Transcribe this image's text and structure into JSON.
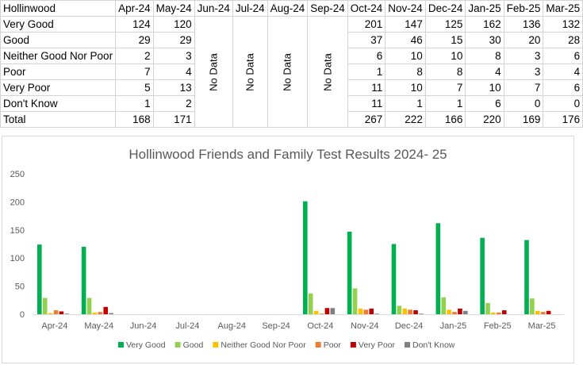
{
  "table": {
    "corner": "Hollinwood",
    "months": [
      "Apr-24",
      "May-24",
      "Jun-24",
      "Jul-24",
      "Aug-24",
      "Sep-24",
      "Oct-24",
      "Nov-24",
      "Dec-24",
      "Jan-25",
      "Feb-25",
      "Mar-25"
    ],
    "no_data_label": "No Data",
    "no_data_months": [
      2,
      3,
      4,
      5
    ],
    "rows": [
      {
        "label": "Very Good",
        "values": [
          124,
          120,
          null,
          null,
          null,
          null,
          201,
          147,
          125,
          162,
          136,
          132
        ]
      },
      {
        "label": "Good",
        "values": [
          29,
          29,
          null,
          null,
          null,
          null,
          37,
          46,
          15,
          30,
          20,
          28
        ]
      },
      {
        "label": "Neither Good Nor Poor",
        "values": [
          2,
          3,
          null,
          null,
          null,
          null,
          6,
          10,
          10,
          8,
          3,
          6
        ]
      },
      {
        "label": "Poor",
        "values": [
          7,
          4,
          null,
          null,
          null,
          null,
          1,
          8,
          8,
          4,
          3,
          4
        ]
      },
      {
        "label": "Very Poor",
        "values": [
          5,
          13,
          null,
          null,
          null,
          null,
          11,
          10,
          7,
          10,
          7,
          6
        ]
      },
      {
        "label": "Don't Know",
        "values": [
          1,
          2,
          null,
          null,
          null,
          null,
          11,
          1,
          1,
          6,
          0,
          0
        ]
      },
      {
        "label": "Total",
        "values": [
          168,
          171,
          null,
          null,
          null,
          null,
          267,
          222,
          166,
          220,
          169,
          176
        ]
      }
    ]
  },
  "chart_data": {
    "type": "bar",
    "title": "Hollinwood Friends and Family Test Results 2024- 25",
    "categories": [
      "Apr-24",
      "May-24",
      "Jun-24",
      "Jul-24",
      "Aug-24",
      "Sep-24",
      "Oct-24",
      "Nov-24",
      "Dec-24",
      "Jan-25",
      "Feb-25",
      "Mar-25"
    ],
    "ylim": [
      0,
      250
    ],
    "yticks": [
      0,
      50,
      100,
      150,
      200,
      250
    ],
    "grid": false,
    "legend": "bottom",
    "series": [
      {
        "name": "Very Good",
        "color": "#00b050",
        "values": [
          124,
          120,
          0,
          0,
          0,
          0,
          201,
          147,
          125,
          162,
          136,
          132
        ]
      },
      {
        "name": "Good",
        "color": "#92d050",
        "values": [
          29,
          29,
          0,
          0,
          0,
          0,
          37,
          46,
          15,
          30,
          20,
          28
        ]
      },
      {
        "name": "Neither Good Nor Poor",
        "color": "#ffc000",
        "values": [
          2,
          3,
          0,
          0,
          0,
          0,
          6,
          10,
          10,
          8,
          3,
          6
        ]
      },
      {
        "name": "Poor",
        "color": "#ed7d31",
        "values": [
          7,
          4,
          0,
          0,
          0,
          0,
          1,
          8,
          8,
          4,
          3,
          4
        ]
      },
      {
        "name": "Very Poor",
        "color": "#c00000",
        "values": [
          5,
          13,
          0,
          0,
          0,
          0,
          11,
          10,
          7,
          10,
          7,
          6
        ]
      },
      {
        "name": "Don't Know",
        "color": "#7f7f7f",
        "values": [
          1,
          2,
          0,
          0,
          0,
          0,
          11,
          1,
          1,
          6,
          0,
          0
        ]
      }
    ]
  }
}
